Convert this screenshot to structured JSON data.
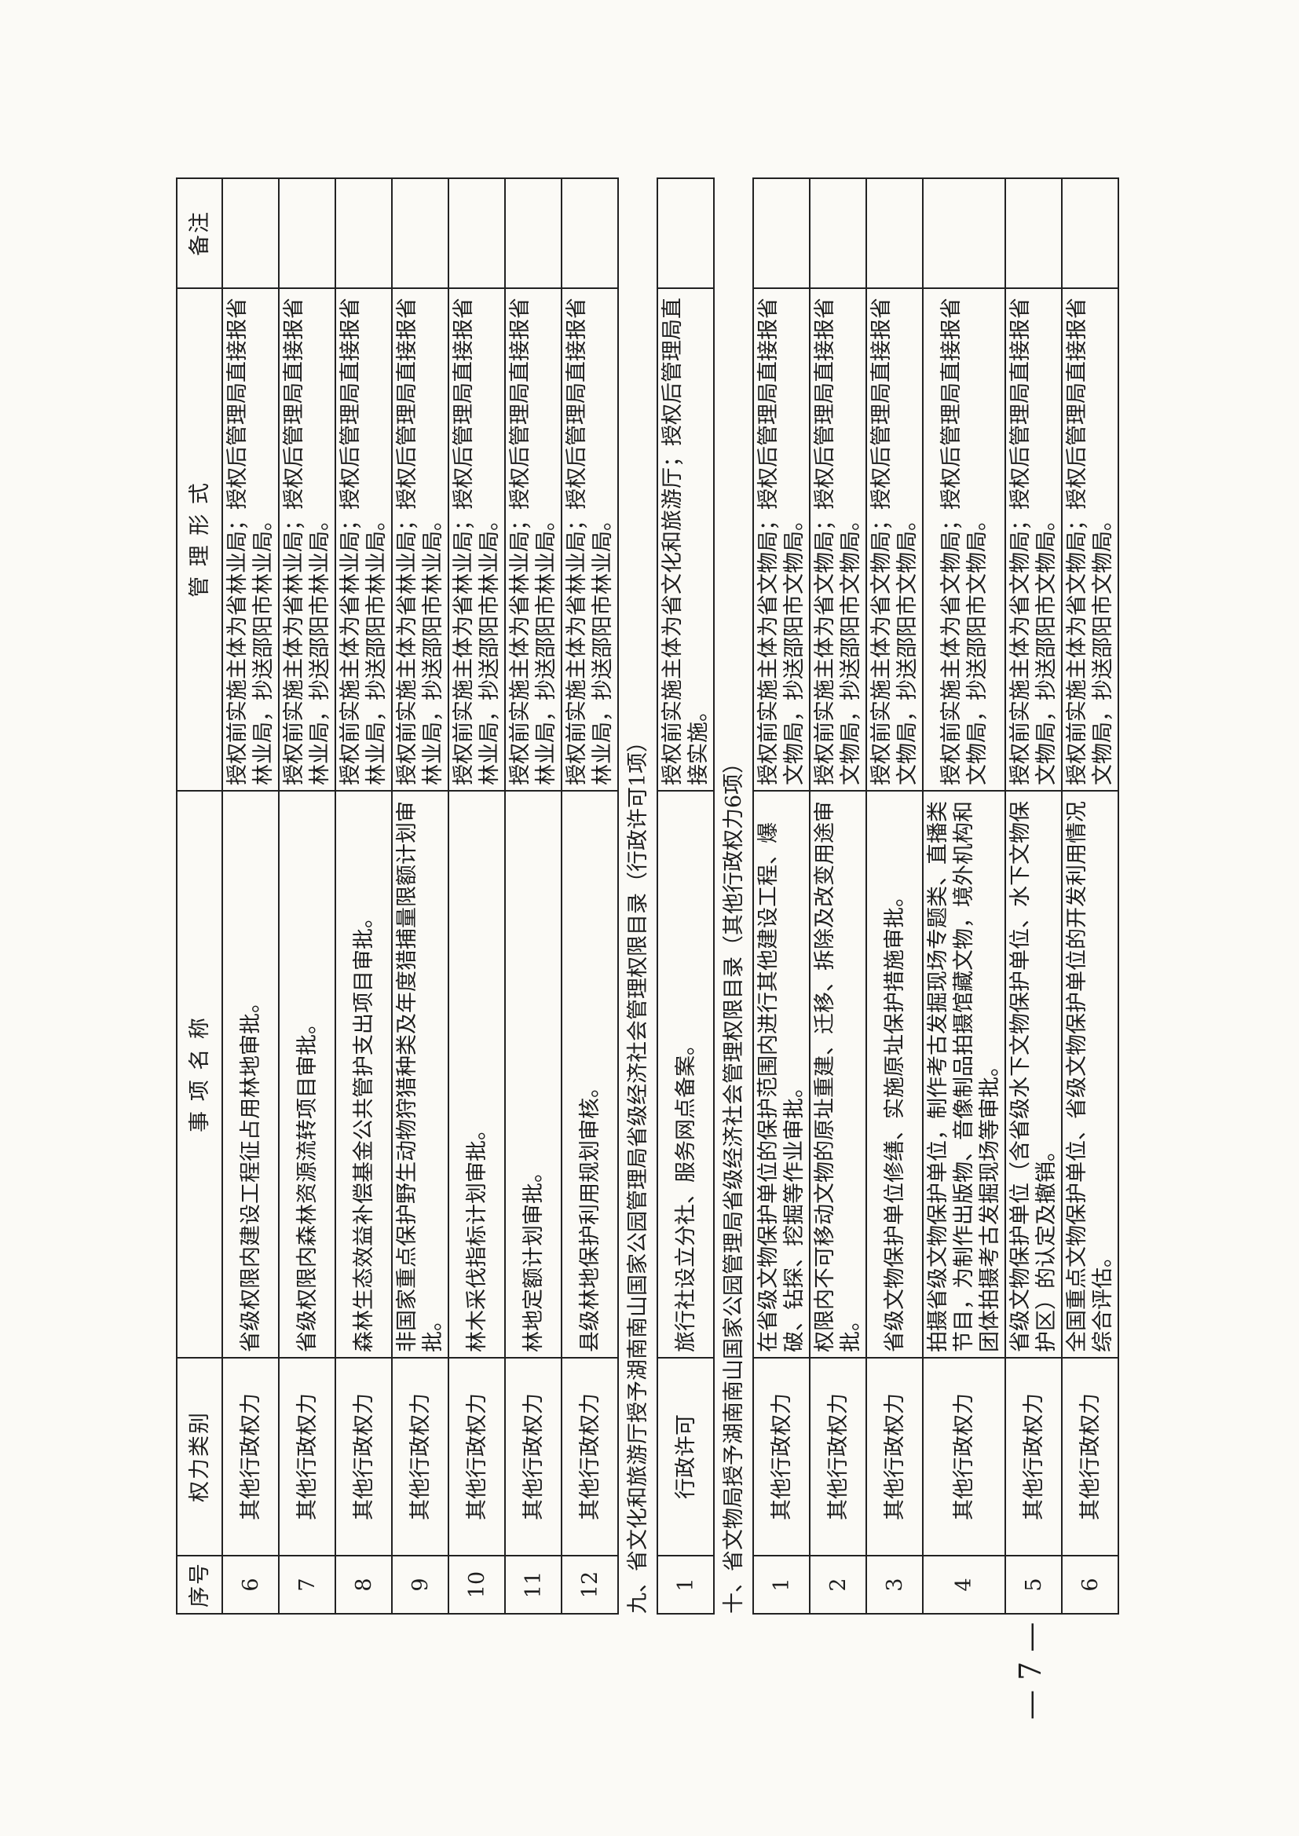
{
  "header": {
    "no": "序号",
    "type": "权力类别",
    "name": "事 项 名 称",
    "form": "管 理 形 式",
    "note": "备注"
  },
  "rows_a": [
    {
      "no": "6",
      "type": "其他行政权力",
      "name": "省级权限内建设工程征占用林地审批。",
      "form": "授权前实施主体为省林业局；授权后管理局直接报省林业局，抄送邵阳市林业局。"
    },
    {
      "no": "7",
      "type": "其他行政权力",
      "name": "省级权限内森林资源流转项目审批。",
      "form": "授权前实施主体为省林业局；授权后管理局直接报省林业局，抄送邵阳市林业局。"
    },
    {
      "no": "8",
      "type": "其他行政权力",
      "name": "森林生态效益补偿基金公共管护支出项目审批。",
      "form": "授权前实施主体为省林业局；授权后管理局直接报省林业局，抄送邵阳市林业局。"
    },
    {
      "no": "9",
      "type": "其他行政权力",
      "name": "非国家重点保护野生动物狩猎种类及年度猎捕量限额计划审批。",
      "form": "授权前实施主体为省林业局；授权后管理局直接报省林业局，抄送邵阳市林业局。"
    },
    {
      "no": "10",
      "type": "其他行政权力",
      "name": "林木采伐指标计划审批。",
      "form": "授权前实施主体为省林业局；授权后管理局直接报省林业局，抄送邵阳市林业局。"
    },
    {
      "no": "11",
      "type": "其他行政权力",
      "name": "林地定额计划审批。",
      "form": "授权前实施主体为省林业局；授权后管理局直接报省林业局，抄送邵阳市林业局。"
    },
    {
      "no": "12",
      "type": "其他行政权力",
      "name": "县级林地保护利用规划审核。",
      "form": "授权前实施主体为省林业局；授权后管理局直接报省林业局，抄送邵阳市林业局。"
    }
  ],
  "section_9": "九、省文化和旅游厅授予湖南南山国家公园管理局省级经济社会管理权限目录（行政许可1项）",
  "rows_b": [
    {
      "no": "1",
      "type": "行政许可",
      "name": "旅行社设立分社、服务网点备案。",
      "form": "授权前实施主体为省文化和旅游厅；授权后管理局直接实施。"
    }
  ],
  "section_10": "十、省文物局授予湖南南山国家公园管理局省级经济社会管理权限目录（其他行政权力6项）",
  "rows_c": [
    {
      "no": "1",
      "type": "其他行政权力",
      "name": "在省级文物保护单位的保护范围内进行其他建设工程、爆破、钻探、挖掘等作业审批。",
      "form": "授权前实施主体为省文物局；授权后管理局直接报省文物局，抄送邵阳市文物局。"
    },
    {
      "no": "2",
      "type": "其他行政权力",
      "name": "权限内不可移动文物的原址重建、迁移、拆除及改变用途审批。",
      "form": "授权前实施主体为省文物局；授权后管理局直接报省文物局，抄送邵阳市文物局。"
    },
    {
      "no": "3",
      "type": "其他行政权力",
      "name": "省级文物保护单位修缮、实施原址保护措施审批。",
      "form": "授权前实施主体为省文物局；授权后管理局直接报省文物局，抄送邵阳市文物局。"
    },
    {
      "no": "4",
      "type": "其他行政权力",
      "name": "拍摄省级文物保护单位，制作考古发掘现场专题类、直播类节目，为制作出版物、音像制品拍摄馆藏文物，境外机构和团体拍摄考古发掘现场等审批。",
      "form": "授权前实施主体为省文物局；授权后管理局直接报省文物局，抄送邵阳市文物局。"
    },
    {
      "no": "5",
      "type": "其他行政权力",
      "name": "省级文物保护单位（含省级水下文物保护单位、水下文物保护区）的认定及撤销。",
      "form": "授权前实施主体为省文物局；授权后管理局直接报省文物局，抄送邵阳市文物局。"
    },
    {
      "no": "6",
      "type": "其他行政权力",
      "name": "全国重点文物保护单位、省级文物保护单位的开发利用情况综合评估。",
      "form": "授权前实施主体为省文物局；授权后管理局直接报省文物局，抄送邵阳市文物局。"
    }
  ],
  "page_number": "— 7 —"
}
